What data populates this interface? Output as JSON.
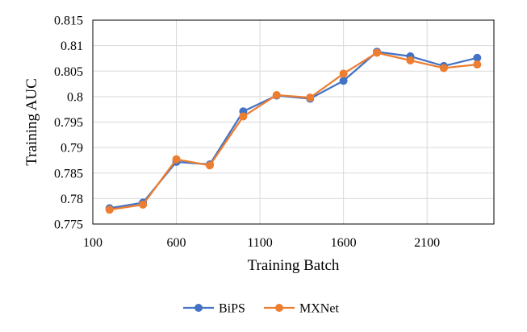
{
  "chart_data": {
    "type": "line",
    "xlabel": "Training Batch",
    "ylabel": "Training AUC",
    "xlim": [
      100,
      2500
    ],
    "ylim": [
      0.775,
      0.815
    ],
    "xticks": [
      100,
      600,
      1100,
      1600,
      2100
    ],
    "xtick_labels": [
      "100",
      "600",
      "1100",
      "1600",
      "2100"
    ],
    "yticks": [
      0.775,
      0.78,
      0.785,
      0.79,
      0.795,
      0.8,
      0.805,
      0.81,
      0.815
    ],
    "ytick_labels": [
      "0.775",
      "0.78",
      "0.785",
      "0.79",
      "0.795",
      "0.8",
      "0.805",
      "0.81",
      "0.815"
    ],
    "grid": true,
    "legend_position": "bottom",
    "x": [
      200,
      400,
      600,
      800,
      1000,
      1200,
      1400,
      1600,
      1800,
      2000,
      2200,
      2400
    ],
    "series": [
      {
        "name": "BiPS",
        "color": "#4472c4",
        "values": [
          0.7781,
          0.7792,
          0.7872,
          0.7867,
          0.7971,
          0.8002,
          0.7996,
          0.8031,
          0.8088,
          0.8079,
          0.806,
          0.8076
        ]
      },
      {
        "name": "MXNet",
        "color": "#ed7d31",
        "values": [
          0.7778,
          0.7788,
          0.7877,
          0.7865,
          0.7961,
          0.8003,
          0.7998,
          0.8045,
          0.8086,
          0.8071,
          0.8056,
          0.8063
        ]
      }
    ]
  }
}
